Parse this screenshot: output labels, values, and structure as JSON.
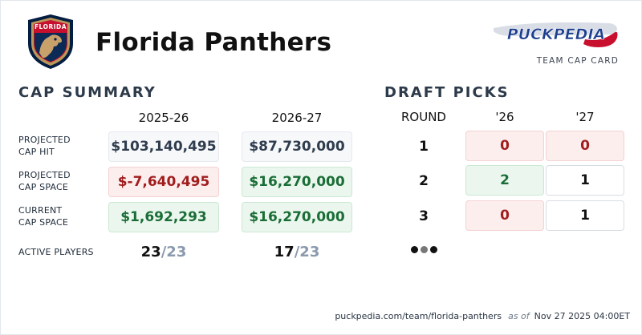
{
  "team": {
    "name": "Florida Panthers",
    "logo_text": "FLORIDA",
    "logo_icon": "panther-crest-icon"
  },
  "brand": {
    "logo_text": "PUCKPEDIA",
    "logo_icon": "hockey-stick-icon",
    "subtitle": "TEAM CAP CARD"
  },
  "cap_summary": {
    "title": "CAP SUMMARY",
    "seasons": [
      "2025-26",
      "2026-27"
    ],
    "rows": [
      {
        "label_line1": "PROJECTED",
        "label_line2": "CAP HIT",
        "values": [
          "$103,140,495",
          "$87,730,000"
        ],
        "tones": [
          "neutral",
          "neutral"
        ]
      },
      {
        "label_line1": "PROJECTED",
        "label_line2": "CAP SPACE",
        "values": [
          "$-7,640,495",
          "$16,270,000"
        ],
        "tones": [
          "neg",
          "pos"
        ]
      },
      {
        "label_line1": "CURRENT",
        "label_line2": "CAP SPACE",
        "values": [
          "$1,692,293",
          "$16,270,000"
        ],
        "tones": [
          "pos",
          "pos"
        ]
      }
    ],
    "active_players": {
      "label": "ACTIVE PLAYERS",
      "values": [
        {
          "count": "23",
          "max": "/23"
        },
        {
          "count": "17",
          "max": "/23"
        }
      ]
    }
  },
  "draft_picks": {
    "title": "DRAFT PICKS",
    "round_header": "ROUND",
    "years": [
      "'26",
      "'27"
    ],
    "rows": [
      {
        "round": "1",
        "picks": [
          "0",
          "0"
        ],
        "tones": [
          "none",
          "none"
        ]
      },
      {
        "round": "2",
        "picks": [
          "2",
          "1"
        ],
        "tones": [
          "extra",
          "own"
        ]
      },
      {
        "round": "3",
        "picks": [
          "0",
          "1"
        ],
        "tones": [
          "none",
          "own"
        ]
      }
    ],
    "more_icon": "more-dots-icon"
  },
  "footer": {
    "url": "puckpedia.com/team/florida-panthers",
    "as_of_label": "as of",
    "timestamp": "Nov 27 2025 04:00ET"
  },
  "colors": {
    "neutral_text": "#2f3d4e",
    "negative_text": "#a11d1d",
    "positive_text": "#1a6d36",
    "section_title": "#2c3a4a",
    "panthers_red": "#c8102e",
    "panthers_navy": "#041e42",
    "panthers_gold": "#b9975b"
  }
}
